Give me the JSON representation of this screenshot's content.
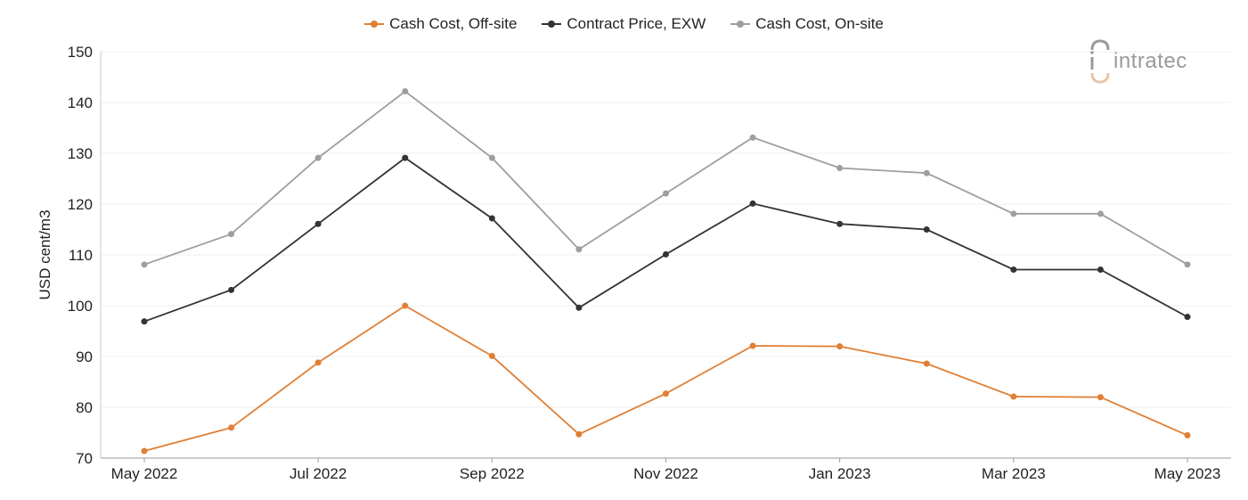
{
  "chart_data": {
    "type": "line",
    "xlabel": "",
    "ylabel": "USD cent/m3",
    "ylim": [
      70,
      150
    ],
    "yticks": [
      70,
      80,
      90,
      100,
      110,
      120,
      130,
      140,
      150
    ],
    "x": [
      "May 2022",
      "Jun 2022",
      "Jul 2022",
      "Aug 2022",
      "Sep 2022",
      "Oct 2022",
      "Nov 2022",
      "Dec 2022",
      "Jan 2023",
      "Feb 2023",
      "Mar 2023",
      "Apr 2023",
      "May 2023"
    ],
    "xtick_labels": [
      "May 2022",
      "Jul 2022",
      "Sep 2022",
      "Nov 2022",
      "Jan 2023",
      "Mar 2023",
      "May 2023"
    ],
    "grid": true,
    "legend_position": "top-center",
    "series": [
      {
        "name": "Cash Cost, Off-site",
        "color": "#e07f35",
        "values": [
          71.4,
          76.0,
          88.8,
          100.0,
          90.1,
          74.7,
          82.7,
          92.1,
          92.0,
          88.6,
          82.1,
          82.0,
          74.5
        ]
      },
      {
        "name": "Contract Price, EXW",
        "color": "#333333",
        "values": [
          96.9,
          103.1,
          116.1,
          129.1,
          117.2,
          99.6,
          110.1,
          120.1,
          116.1,
          115.0,
          107.1,
          107.1,
          97.8
        ]
      },
      {
        "name": "Cash Cost, On-site",
        "color": "#9e9e9e",
        "values": [
          108.1,
          114.1,
          129.1,
          142.2,
          129.1,
          111.1,
          122.1,
          133.1,
          127.1,
          126.1,
          118.1,
          118.1,
          108.1
        ]
      }
    ]
  },
  "logo": {
    "text": "intratec",
    "icon": "intratec-logo-icon"
  }
}
